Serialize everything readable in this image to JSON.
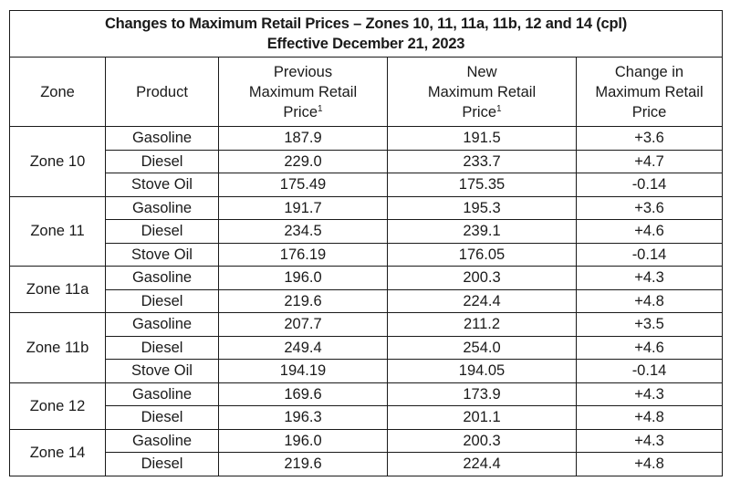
{
  "title": {
    "line1": "Changes to Maximum Retail Prices – Zones 10, 11, 11a, 11b, 12 and 14 (cpl)",
    "line2": "Effective December 21, 2023"
  },
  "columns": {
    "zone": "Zone",
    "product": "Product",
    "previous": {
      "line1": "Previous",
      "line2": "Maximum Retail",
      "line3": "Price",
      "footnote": "1"
    },
    "new": {
      "line1": "New",
      "line2": "Maximum Retail",
      "line3": "Price",
      "footnote": "1"
    },
    "change": {
      "line1": "Change in",
      "line2": "Maximum Retail",
      "line3": "Price"
    }
  },
  "zones": [
    {
      "name": "Zone 10",
      "rows": [
        {
          "product": "Gasoline",
          "previous": "187.9",
          "new": "191.5",
          "change": "+3.6"
        },
        {
          "product": "Diesel",
          "previous": "229.0",
          "new": "233.7",
          "change": "+4.7"
        },
        {
          "product": "Stove Oil",
          "previous": "175.49",
          "new": "175.35",
          "change": "-0.14"
        }
      ]
    },
    {
      "name": "Zone 11",
      "rows": [
        {
          "product": "Gasoline",
          "previous": "191.7",
          "new": "195.3",
          "change": "+3.6"
        },
        {
          "product": "Diesel",
          "previous": "234.5",
          "new": "239.1",
          "change": "+4.6"
        },
        {
          "product": "Stove Oil",
          "previous": "176.19",
          "new": "176.05",
          "change": "-0.14"
        }
      ]
    },
    {
      "name": "Zone 11a",
      "rows": [
        {
          "product": "Gasoline",
          "previous": "196.0",
          "new": "200.3",
          "change": "+4.3"
        },
        {
          "product": "Diesel",
          "previous": "219.6",
          "new": "224.4",
          "change": "+4.8"
        }
      ]
    },
    {
      "name": "Zone 11b",
      "rows": [
        {
          "product": "Gasoline",
          "previous": "207.7",
          "new": "211.2",
          "change": "+3.5"
        },
        {
          "product": "Diesel",
          "previous": "249.4",
          "new": "254.0",
          "change": "+4.6"
        },
        {
          "product": "Stove Oil",
          "previous": "194.19",
          "new": "194.05",
          "change": "-0.14"
        }
      ]
    },
    {
      "name": "Zone 12",
      "rows": [
        {
          "product": "Gasoline",
          "previous": "169.6",
          "new": "173.9",
          "change": "+4.3"
        },
        {
          "product": "Diesel",
          "previous": "196.3",
          "new": "201.1",
          "change": "+4.8"
        }
      ]
    },
    {
      "name": "Zone 14",
      "rows": [
        {
          "product": "Gasoline",
          "previous": "196.0",
          "new": "200.3",
          "change": "+4.3"
        },
        {
          "product": "Diesel",
          "previous": "219.6",
          "new": "224.4",
          "change": "+4.8"
        }
      ]
    }
  ]
}
